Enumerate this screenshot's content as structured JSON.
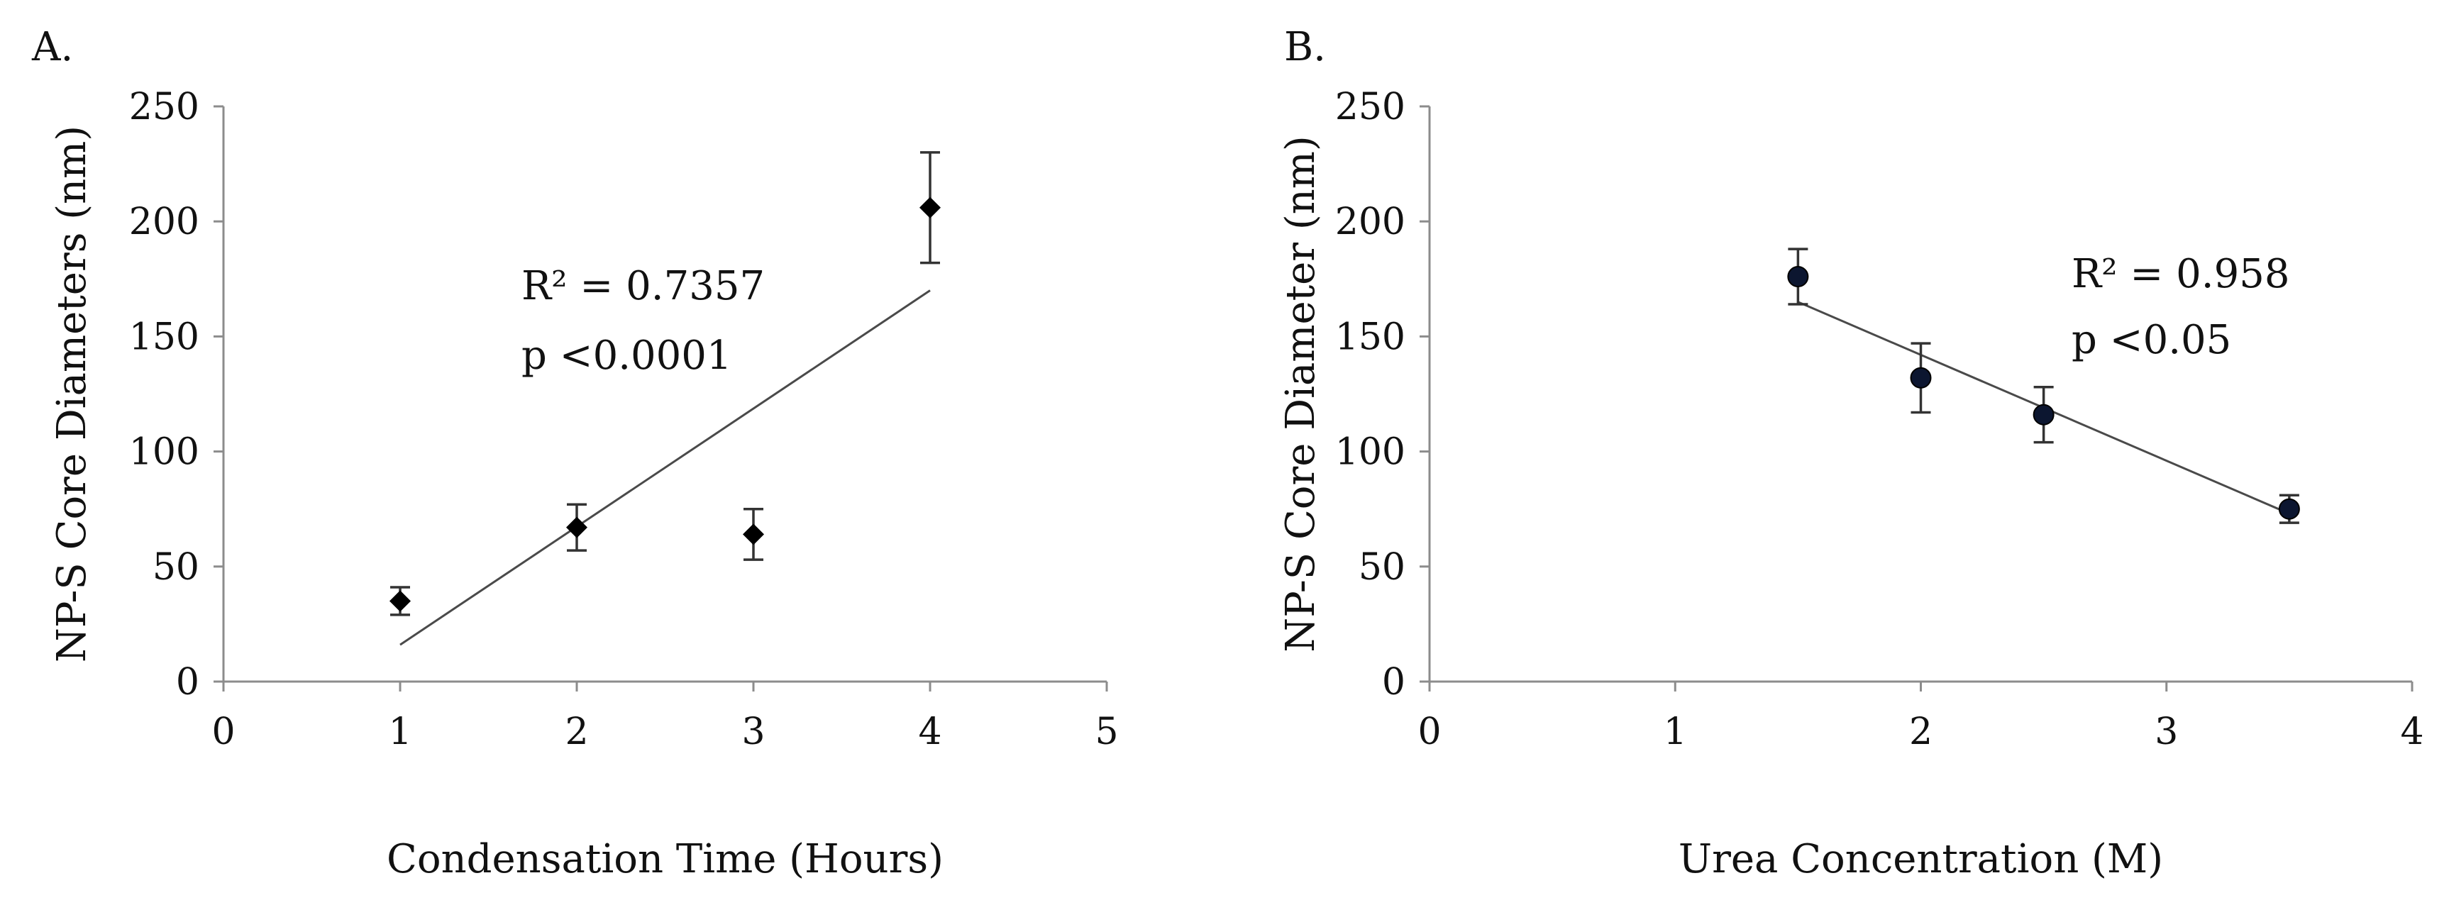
{
  "chart_data": [
    {
      "type": "scatter",
      "panel_label": "A.",
      "xlabel": "Condensation Time (Hours)",
      "ylabel": "NP-S Core Diameters (nm)",
      "xlim": [
        0,
        5
      ],
      "ylim": [
        0,
        250
      ],
      "xticks": [
        0,
        1,
        2,
        3,
        4,
        5
      ],
      "yticks": [
        0,
        50,
        100,
        150,
        200,
        250
      ],
      "marker": "diamond",
      "points": [
        {
          "x": 1,
          "y": 35,
          "err": 6
        },
        {
          "x": 2,
          "y": 67,
          "err": 10
        },
        {
          "x": 3,
          "y": 64,
          "err": 11
        },
        {
          "x": 4,
          "y": 206,
          "err": 24
        }
      ],
      "trendline": {
        "x": [
          1,
          4
        ],
        "y": [
          16,
          170
        ]
      },
      "annotations": [
        "R² = 0.7357",
        "p <0.0001"
      ],
      "grid": false
    },
    {
      "type": "scatter",
      "panel_label": "B.",
      "xlabel": "Urea Concentration (M)",
      "ylabel": "NP-S Core Diameter (nm)",
      "xlim": [
        0,
        4
      ],
      "ylim": [
        0,
        250
      ],
      "xticks": [
        0,
        1,
        2,
        3,
        4
      ],
      "yticks": [
        0,
        50,
        100,
        150,
        200,
        250
      ],
      "marker": "circle",
      "points": [
        {
          "x": 1.5,
          "y": 176,
          "err": 12
        },
        {
          "x": 2,
          "y": 132,
          "err": 15
        },
        {
          "x": 2.5,
          "y": 116,
          "err": 12
        },
        {
          "x": 3.5,
          "y": 75,
          "err": 6
        }
      ],
      "trendline": {
        "x": [
          1.5,
          3.5
        ],
        "y": [
          165,
          73
        ]
      },
      "annotations": [
        "R² = 0.958",
        "p <0.05"
      ],
      "grid": false
    }
  ]
}
